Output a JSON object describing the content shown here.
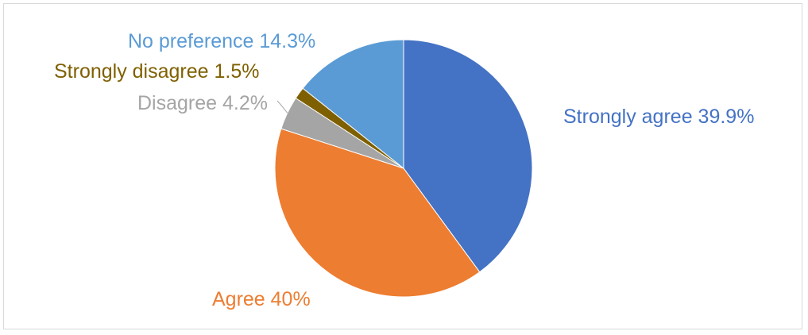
{
  "chart_data": {
    "type": "pie",
    "title": "",
    "slices": [
      {
        "label": "Strongly agree 39.9%",
        "category": "Strongly agree",
        "value": 39.9,
        "color": "#4472c4"
      },
      {
        "label": "Agree 40%",
        "category": "Agree",
        "value": 40,
        "color": "#ed7d31"
      },
      {
        "label": "Disagree 4.2%",
        "category": "Disagree",
        "value": 4.2,
        "color": "#a5a5a5"
      },
      {
        "label": "Strongly disagree 1.5%",
        "category": "Strongly disagree",
        "value": 1.5,
        "color": "#7f6000"
      },
      {
        "label": "No preference 14.3%",
        "category": "No preference",
        "value": 14.3,
        "color": "#5b9bd5"
      }
    ],
    "start_angle": "12 o'clock",
    "direction": "clockwise",
    "legend": "none",
    "data_labels": "outside, colored like slices"
  }
}
